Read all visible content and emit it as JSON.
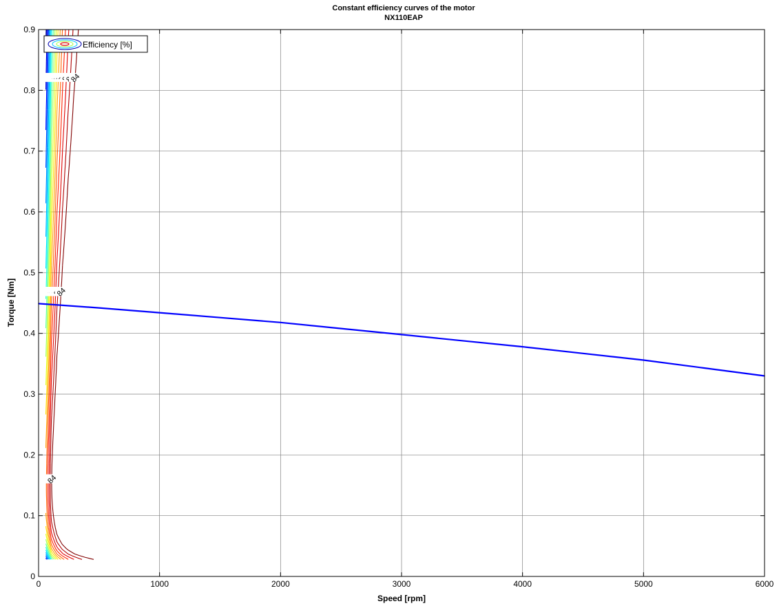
{
  "chart_data": {
    "type": "contour",
    "title": "Constant efficiency curves of the motor",
    "subtitle": "NX110EAP",
    "xlabel": "Speed [rpm]",
    "ylabel": "Torque [Nm]",
    "xlim": [
      0,
      6000
    ],
    "ylim": [
      0,
      0.9
    ],
    "xticks": [
      0,
      1000,
      2000,
      3000,
      4000,
      5000,
      6000
    ],
    "yticks": [
      0,
      0.1,
      0.2,
      0.3,
      0.4,
      0.5,
      0.6,
      0.7,
      0.8,
      0.9
    ],
    "grid": true,
    "legend": {
      "position": "top-left",
      "entries": [
        "Efficiency [%]"
      ]
    },
    "contour_levels": [
      50,
      52,
      54,
      56,
      58,
      60,
      62,
      64,
      66,
      68,
      70,
      72,
      74,
      76,
      78,
      80,
      82,
      84
    ],
    "level_colors": {
      "50": "#00008f",
      "52": "#0000d0",
      "54": "#0010ff",
      "56": "#0050ff",
      "58": "#0090ff",
      "60": "#00b8ff",
      "62": "#00e0ff",
      "64": "#20ffdf",
      "66": "#60ff9f",
      "68": "#a0ff60",
      "70": "#e0ff20",
      "72": "#ffe000",
      "74": "#ffa000",
      "76": "#ff6000",
      "78": "#ff2000",
      "80": "#e00000",
      "82": "#b00000",
      "84": "#800000"
    },
    "limit_curve": {
      "color": "#0000ff",
      "x": [
        0,
        500,
        1000,
        1500,
        2000,
        2500,
        3000,
        3500,
        4000,
        4500,
        5000,
        5500,
        6000
      ],
      "y": [
        0.449,
        0.442,
        0.434,
        0.426,
        0.418,
        0.408,
        0.398,
        0.388,
        0.378,
        0.367,
        0.356,
        0.343,
        0.33
      ]
    }
  }
}
